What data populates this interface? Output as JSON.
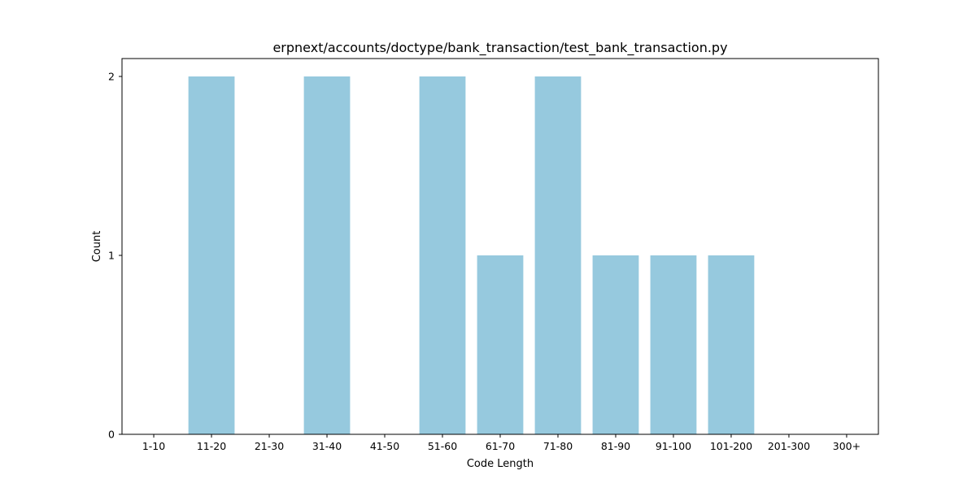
{
  "chart_data": {
    "type": "bar",
    "title": "erpnext/accounts/doctype/bank_transaction/test_bank_transaction.py",
    "xlabel": "Code Length",
    "ylabel": "Count",
    "categories": [
      "1-10",
      "11-20",
      "21-30",
      "31-40",
      "41-50",
      "51-60",
      "61-70",
      "71-80",
      "81-90",
      "91-100",
      "101-200",
      "201-300",
      "300+"
    ],
    "values": [
      0,
      2,
      0,
      2,
      0,
      2,
      1,
      2,
      1,
      1,
      1,
      0,
      0
    ],
    "ylim": [
      0,
      2.1
    ],
    "yticks": [
      0,
      1,
      2
    ],
    "grid": false,
    "legend": "none",
    "bar_color": "#96c9de"
  }
}
